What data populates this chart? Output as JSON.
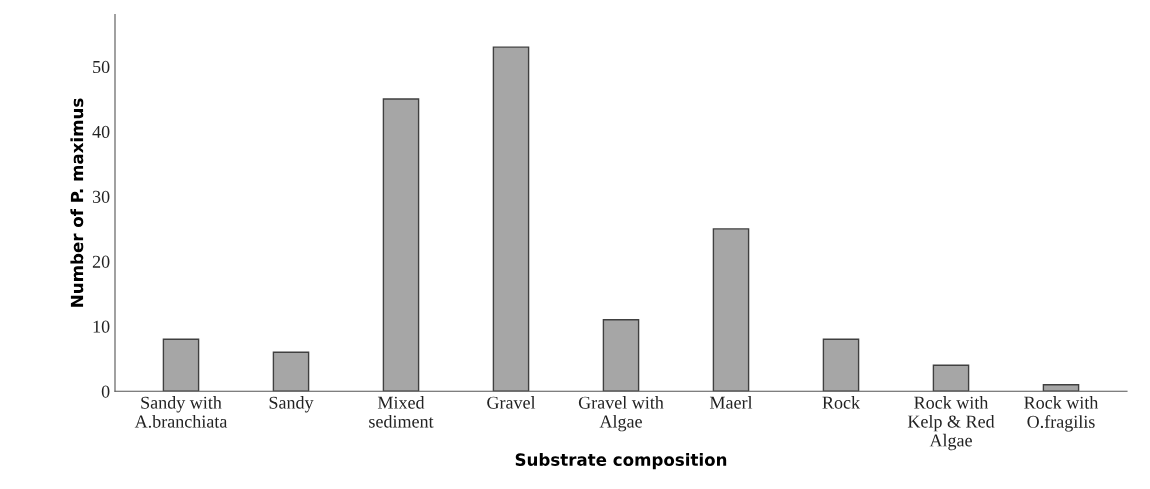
{
  "chart_data": {
    "type": "bar",
    "categories": [
      "Sandy with\nA.branchiata",
      "Sandy",
      "Mixed\nsediment",
      "Gravel",
      "Gravel with\nAlgae",
      "Maerl",
      "Rock",
      "Rock with\nKelp & Red\nAlgae",
      "Rock with\nO.fragilis"
    ],
    "values": [
      8,
      6,
      45,
      53,
      11,
      25,
      8,
      4,
      1
    ],
    "color": "#a6a6a6",
    "xlabel": "Substrate composition",
    "ylabel": "Number of P. maximus",
    "ylim": [
      0,
      58
    ],
    "yticks": [
      0,
      10,
      20,
      30,
      40,
      50
    ],
    "grid": false
  }
}
